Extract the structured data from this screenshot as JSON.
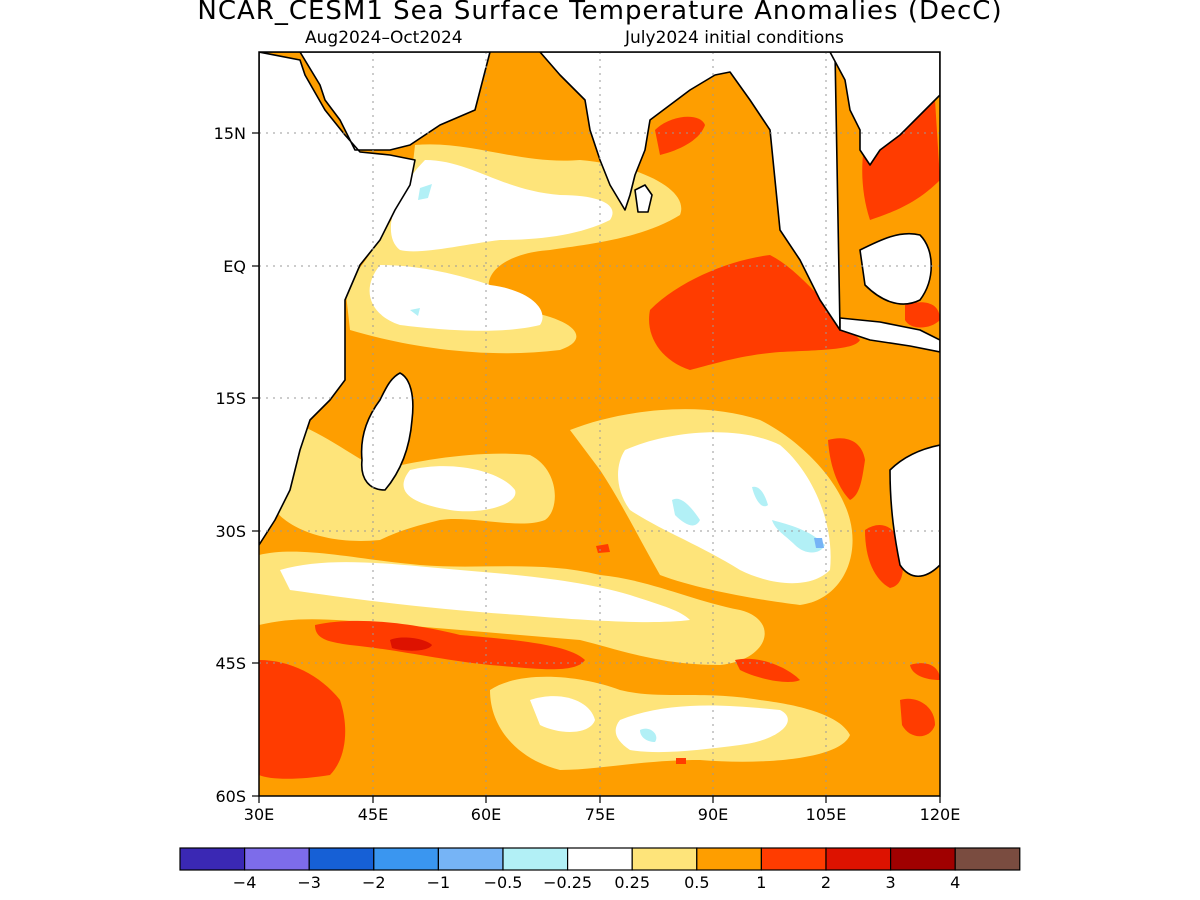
{
  "title": "NCAR_CESM1 Sea Surface Temperature Anomalies (DecC)",
  "subtitle_left": "Aug2024–Oct2024",
  "subtitle_right": "July2024 initial conditions",
  "lon_ticks": [
    "30E",
    "45E",
    "60E",
    "75E",
    "90E",
    "105E",
    "120E"
  ],
  "lat_ticks": [
    "15N",
    "EQ",
    "15S",
    "30S",
    "45S",
    "60S"
  ],
  "colorbar": {
    "colors": [
      "#3a28b4",
      "#7d6cea",
      "#1660d6",
      "#3a96f0",
      "#76b4f6",
      "#b2f0f6",
      "#ffffff",
      "#fee47a",
      "#fe9e00",
      "#ff3c00",
      "#dd1200",
      "#a00000",
      "#7a4c40"
    ],
    "labels": [
      "−4",
      "−3",
      "−2",
      "−1",
      "−0.5",
      "−0.25",
      "0.25",
      "0.5",
      "1",
      "2",
      "3",
      "4"
    ]
  },
  "palette": {
    "land_outline": "#000000",
    "warm_05_1": "#fe9e00",
    "warm_025_05": "#fee47a",
    "warm_1_2": "#ff3c00",
    "warm_2_3": "#dd1200",
    "cool_025": "#b2f0f6",
    "cool_05": "#76b4f6",
    "gridline": "#999999"
  }
}
